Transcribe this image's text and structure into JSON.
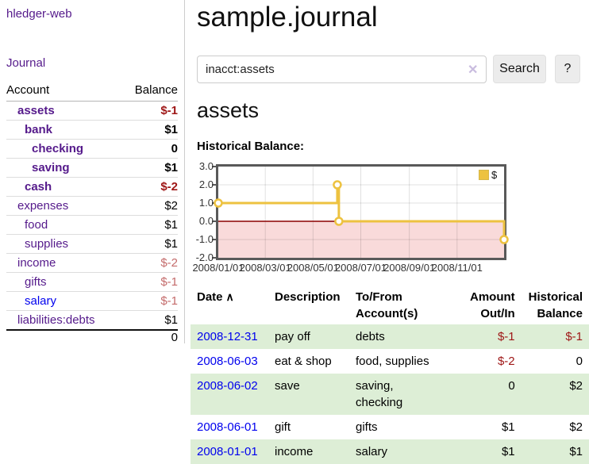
{
  "app": {
    "brand": "hledger-web",
    "nav_journal": "Journal"
  },
  "sidebar": {
    "header": {
      "account": "Account",
      "balance": "Balance"
    },
    "accounts": [
      {
        "name": "assets",
        "depth": 1,
        "bold": true,
        "balance": "$-1"
      },
      {
        "name": "bank",
        "depth": 2,
        "bold": true,
        "balance": "$1"
      },
      {
        "name": "checking",
        "depth": 3,
        "bold": true,
        "balance": "0"
      },
      {
        "name": "saving",
        "depth": 3,
        "bold": true,
        "balance": "$1"
      },
      {
        "name": "cash",
        "depth": 2,
        "bold": true,
        "balance": "$-2"
      },
      {
        "name": "expenses",
        "depth": 1,
        "bold": false,
        "balance": "$2"
      },
      {
        "name": "food",
        "depth": 2,
        "bold": false,
        "balance": "$1"
      },
      {
        "name": "supplies",
        "depth": 2,
        "bold": false,
        "balance": "$1"
      },
      {
        "name": "income",
        "depth": 1,
        "bold": false,
        "balance": "$-2"
      },
      {
        "name": "gifts",
        "depth": 2,
        "bold": false,
        "balance": "$-1"
      },
      {
        "name": "salary",
        "depth": 2,
        "bold": false,
        "balance": "$-1",
        "unvisited": true
      },
      {
        "name": "liabilities:debts",
        "depth": 1,
        "bold": false,
        "balance": "$1"
      }
    ],
    "total": "0"
  },
  "main": {
    "title": "sample.journal",
    "search": {
      "value": "inacct:assets",
      "clear_icon": "✕",
      "button_label": "Search",
      "help_label": "?"
    },
    "account_heading": "assets",
    "chart_label": "Historical Balance:"
  },
  "chart_data": {
    "type": "line",
    "step": true,
    "title": "Historical Balance:",
    "series": [
      {
        "name": "$",
        "color": "#edc240",
        "points": [
          [
            "2008-01-01",
            1
          ],
          [
            "2008-06-01",
            2
          ],
          [
            "2008-06-03",
            0
          ],
          [
            "2008-12-31",
            -1
          ]
        ]
      }
    ],
    "x_range": [
      "2008-01-01",
      "2008-12-31"
    ],
    "y_range": [
      -2,
      3
    ],
    "y_ticks": [
      "3.0",
      "2.0",
      "1.0",
      "0.0",
      "-1.0",
      "-2.0"
    ],
    "x_ticks": [
      "2008/01/01",
      "2008/03/01",
      "2008/05/01",
      "2008/07/01",
      "2008/09/01",
      "2008/11/01"
    ],
    "legend": {
      "label": "$",
      "position": "top-right"
    },
    "grid": true,
    "negative_region_color": "#f9dada",
    "zero_line_color": "#8b0000"
  },
  "register": {
    "sort_icon": "∧",
    "columns": [
      {
        "label": "Date",
        "sorted": true
      },
      {
        "label": "Description"
      },
      {
        "label": "To/From",
        "label2": "Account(s)"
      },
      {
        "label": "Amount",
        "label2": "Out/In",
        "align": "right"
      },
      {
        "label": "Historical",
        "label2": "Balance",
        "align": "right"
      }
    ],
    "rows": [
      {
        "date": "2008-12-31",
        "description": "pay off",
        "accounts": "debts",
        "amount": "$-1",
        "balance": "$-1"
      },
      {
        "date": "2008-06-03",
        "description": "eat & shop",
        "accounts": "food, supplies",
        "amount": "$-2",
        "balance": "0"
      },
      {
        "date": "2008-06-02",
        "description": "save",
        "accounts": "saving,\nchecking",
        "amount": "0",
        "balance": "$2"
      },
      {
        "date": "2008-06-01",
        "description": "gift",
        "accounts": "gifts",
        "amount": "$1",
        "balance": "$2"
      },
      {
        "date": "2008-01-01",
        "description": "income",
        "accounts": "salary",
        "amount": "$1",
        "balance": "$1"
      }
    ]
  }
}
